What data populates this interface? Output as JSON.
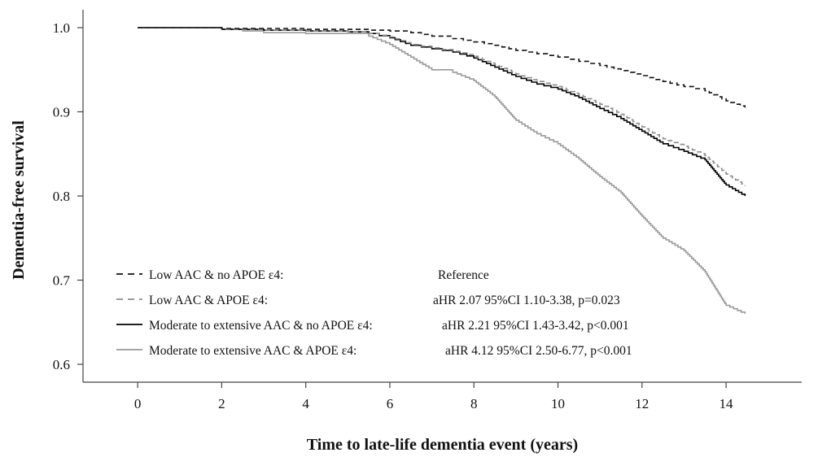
{
  "chart_data": {
    "type": "line",
    "title": "",
    "xlabel": "Time to late-life dementia event (years)",
    "ylabel": "Dementia-free survival",
    "xlim": [
      -1.3,
      15.8
    ],
    "ylim": [
      0.6,
      1.0
    ],
    "xticks": [
      0,
      2,
      4,
      6,
      8,
      10,
      12,
      14
    ],
    "xtick_labels": [
      "0",
      "2",
      "4",
      "6",
      "8",
      "10",
      "12",
      "14"
    ],
    "yticks": [
      0.6,
      0.7,
      0.8,
      0.9,
      1.0
    ],
    "ytick_labels": [
      "0.6",
      "0.7",
      "0.8",
      "0.9",
      "1.0"
    ],
    "grid": false,
    "legend_position": "bottom-left",
    "series": [
      {
        "name": "Low AAC & no APOE ɛ4:",
        "stat": "Reference",
        "color": "#111111",
        "dash": "dashed",
        "step": true,
        "x": [
          0,
          1.5,
          2,
          3,
          4,
          5,
          5.5,
          6,
          6.5,
          7,
          7.5,
          8,
          8.5,
          9,
          9.5,
          10,
          10.5,
          11,
          11.5,
          12,
          12.5,
          13,
          13.5,
          14,
          14.45
        ],
        "y": [
          1.0,
          1.0,
          0.999,
          0.999,
          0.998,
          0.998,
          0.997,
          0.996,
          0.994,
          0.99,
          0.987,
          0.983,
          0.979,
          0.973,
          0.969,
          0.965,
          0.96,
          0.955,
          0.949,
          0.943,
          0.936,
          0.93,
          0.925,
          0.913,
          0.905
        ]
      },
      {
        "name": "Low AAC & APOE ɛ4:",
        "stat": "aHR 2.07 95%CI 1.10-3.38, p=0.023",
        "color": "#8c8c8c",
        "dash": "dashed",
        "step": true,
        "x": [
          0,
          1.5,
          2,
          3,
          4,
          5,
          5.5,
          6,
          6.5,
          7,
          7.5,
          8,
          8.5,
          9,
          9.5,
          10,
          10.5,
          11,
          11.5,
          12,
          12.5,
          13,
          13.5,
          14,
          14.45
        ],
        "y": [
          1.0,
          1.0,
          0.998,
          0.997,
          0.996,
          0.995,
          0.993,
          0.989,
          0.98,
          0.976,
          0.972,
          0.966,
          0.956,
          0.945,
          0.936,
          0.93,
          0.92,
          0.909,
          0.897,
          0.882,
          0.868,
          0.859,
          0.848,
          0.826,
          0.812
        ]
      },
      {
        "name": "Moderate to extensive AAC & no APOE ɛ4:",
        "stat": "aHR 2.21 95%CI 1.43-3.42, p<0.001",
        "color": "#000000",
        "dash": "solid",
        "step": true,
        "x": [
          0,
          1.5,
          2,
          3,
          4,
          5,
          5.5,
          6,
          6.5,
          7,
          7.5,
          8,
          8.5,
          9,
          9.5,
          10,
          10.5,
          11,
          11.5,
          12,
          12.5,
          13,
          13.5,
          14,
          14.45
        ],
        "y": [
          1.0,
          1.0,
          0.998,
          0.997,
          0.996,
          0.995,
          0.993,
          0.988,
          0.979,
          0.975,
          0.971,
          0.964,
          0.953,
          0.942,
          0.933,
          0.927,
          0.917,
          0.904,
          0.892,
          0.877,
          0.862,
          0.853,
          0.843,
          0.813,
          0.8
        ]
      },
      {
        "name": "Moderate to extensive AAC & APOE ɛ4:",
        "stat": "aHR 4.12 95%CI 2.50-6.77, p<0.001",
        "color": "#9a9a9a",
        "dash": "solid",
        "step": true,
        "x": [
          0,
          1.5,
          2,
          3,
          4,
          5,
          5.5,
          6,
          6.5,
          7,
          7.5,
          8,
          8.5,
          9,
          9.5,
          10,
          10.5,
          11,
          11.5,
          12,
          12.5,
          13,
          13.5,
          14,
          14.45
        ],
        "y": [
          1.0,
          1.0,
          0.998,
          0.994,
          0.993,
          0.993,
          0.99,
          0.98,
          0.965,
          0.95,
          0.947,
          0.937,
          0.918,
          0.89,
          0.874,
          0.862,
          0.844,
          0.823,
          0.804,
          0.776,
          0.75,
          0.735,
          0.71,
          0.67,
          0.66
        ]
      }
    ]
  }
}
